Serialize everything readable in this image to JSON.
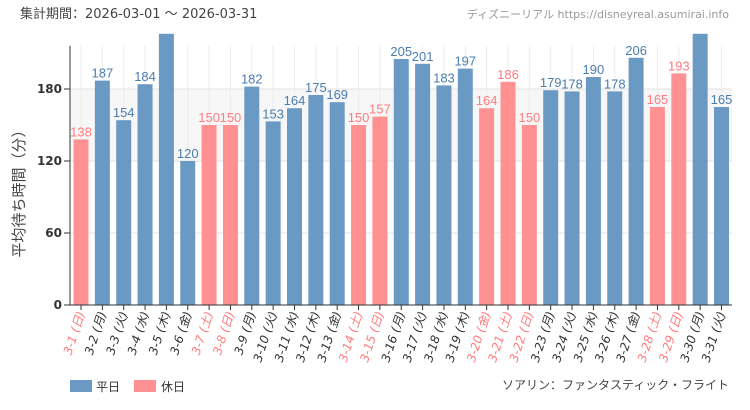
{
  "period_label": "集計期間：2026-03-01 ～ 2026-03-31",
  "watermark": "ディズニーリアル https://disneyreal.asumirai.info",
  "attraction": "ソアリン：ファンタスティック・フライト",
  "colors": {
    "weekday": "#6a9ac4",
    "holiday": "#ff9193",
    "weekday_label": "#4a7db0",
    "holiday_label": "#ff7b7e"
  },
  "chart_data": {
    "type": "bar",
    "ylabel": "平均待ち時間（分）",
    "ylim": [
      0,
      216
    ],
    "yticks": [
      0,
      60,
      120,
      180
    ],
    "grid": true,
    "legend_position": "bottom-left",
    "legend": [
      {
        "name": "平日",
        "key": "weekday"
      },
      {
        "name": "休日",
        "key": "holiday"
      }
    ],
    "categories": [
      "3-1 (日)",
      "3-2 (月)",
      "3-3 (火)",
      "3-4 (水)",
      "3-5 (木)",
      "3-6 (金)",
      "3-7 (土)",
      "3-8 (日)",
      "3-9 (月)",
      "3-10 (火)",
      "3-11 (水)",
      "3-12 (木)",
      "3-13 (金)",
      "3-14 (土)",
      "3-15 (日)",
      "3-16 (月)",
      "3-17 (火)",
      "3-18 (水)",
      "3-19 (木)",
      "3-20 (金)",
      "3-21 (土)",
      "3-22 (日)",
      "3-23 (月)",
      "3-24 (火)",
      "3-25 (水)",
      "3-26 (木)",
      "3-27 (金)",
      "3-28 (土)",
      "3-29 (日)",
      "3-30 (月)",
      "3-31 (火)"
    ],
    "values": [
      138,
      187,
      154,
      184,
      null,
      120,
      150,
      150,
      182,
      153,
      164,
      175,
      169,
      150,
      157,
      205,
      201,
      183,
      197,
      164,
      186,
      150,
      179,
      178,
      190,
      178,
      206,
      165,
      193,
      null,
      165
    ],
    "day_type": [
      "holiday",
      "weekday",
      "weekday",
      "weekday",
      "weekday",
      "weekday",
      "holiday",
      "holiday",
      "weekday",
      "weekday",
      "weekday",
      "weekday",
      "weekday",
      "holiday",
      "holiday",
      "weekday",
      "weekday",
      "weekday",
      "weekday",
      "holiday",
      "holiday",
      "holiday",
      "weekday",
      "weekday",
      "weekday",
      "weekday",
      "weekday",
      "holiday",
      "holiday",
      "weekday",
      "weekday"
    ]
  }
}
